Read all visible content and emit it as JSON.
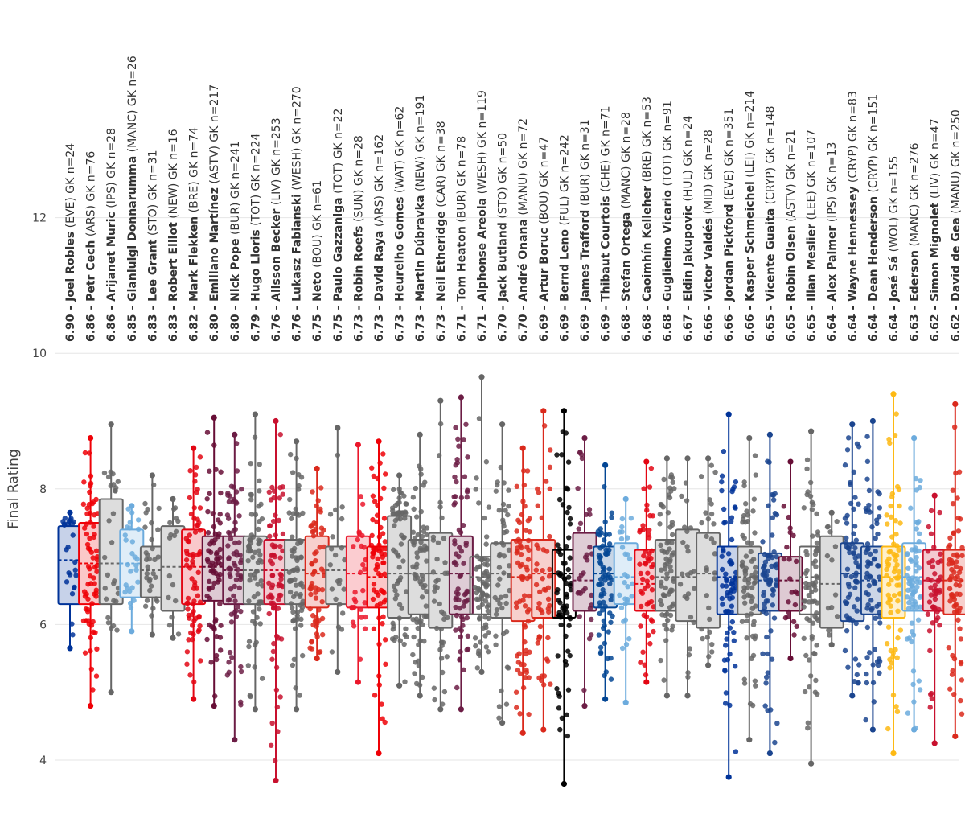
{
  "chart_data": {
    "type": "boxplot",
    "title": "",
    "xlabel": "",
    "ylabel": "Final Rating",
    "ylim": [
      3.7,
      12.8
    ],
    "yticks": [
      4,
      6,
      8,
      10,
      12
    ],
    "ytick_labels": [
      "4",
      "6",
      "8",
      "10",
      "12"
    ],
    "grid": true,
    "legend": "none",
    "series": [
      {
        "rating": "6.90",
        "name": "Joel Robles",
        "team": "(EVE)",
        "suffix": "GK n=24",
        "color": "#003399",
        "fill": "light",
        "min": 5.65,
        "q1": 6.3,
        "median": 6.95,
        "q3": 7.45,
        "max": 7.65,
        "n": 24
      },
      {
        "rating": "6.86",
        "name": "Petr Cech",
        "team": "(ARS)",
        "suffix": "GK n=76",
        "color": "#EF0107",
        "fill": "light",
        "min": 4.8,
        "q1": 6.3,
        "median": 6.9,
        "q3": 7.5,
        "max": 8.75,
        "n": 76
      },
      {
        "rating": "6.86",
        "name": "Arijanet Muric",
        "team": "(IPS)",
        "suffix": "GK n=28",
        "color": "#666666",
        "fill": "light",
        "min": 5.0,
        "q1": 6.3,
        "median": 6.9,
        "q3": 7.85,
        "max": 8.95,
        "n": 28
      },
      {
        "rating": "6.85",
        "name": "Gianluigi Donnarumma",
        "team": "(MANC)",
        "suffix": "GK n=26",
        "color": "#6CABDD",
        "fill": "light",
        "min": 5.9,
        "q1": 6.4,
        "median": 6.9,
        "q3": 7.4,
        "max": 7.75,
        "n": 26
      },
      {
        "rating": "6.83",
        "name": "Lee Grant",
        "team": "(STO)",
        "suffix": "GK n=31",
        "color": "#666666",
        "fill": "light",
        "min": 5.85,
        "q1": 6.4,
        "median": 6.8,
        "q3": 7.15,
        "max": 8.2,
        "n": 31
      },
      {
        "rating": "6.83",
        "name": "Robert Elliot",
        "team": "(NEW)",
        "suffix": "GK n=16",
        "color": "#666666",
        "fill": "light",
        "min": 5.8,
        "q1": 6.2,
        "median": 6.85,
        "q3": 7.45,
        "max": 7.85,
        "n": 16
      },
      {
        "rating": "6.82",
        "name": "Mark Flekken",
        "team": "(BRE)",
        "suffix": "GK n=74",
        "color": "#E30613",
        "fill": "light",
        "min": 4.9,
        "q1": 6.3,
        "median": 6.85,
        "q3": 7.4,
        "max": 8.6,
        "n": 74
      },
      {
        "rating": "6.80",
        "name": "Emiliano Martínez",
        "team": "(ASTV)",
        "suffix": "GK n=217",
        "color": "#670E36",
        "fill": "light",
        "min": 4.8,
        "q1": 6.35,
        "median": 6.85,
        "q3": 7.3,
        "max": 9.05,
        "n": 217
      },
      {
        "rating": "6.80",
        "name": "Nick Pope",
        "team": "(BUR)",
        "suffix": "GK n=241",
        "color": "#6C1D45",
        "fill": "light",
        "min": 4.3,
        "q1": 6.3,
        "median": 6.8,
        "q3": 7.3,
        "max": 8.8,
        "n": 241
      },
      {
        "rating": "6.79",
        "name": "Hugo Lloris",
        "team": "(TOT)",
        "suffix": "GK n=224",
        "color": "#666666",
        "fill": "light",
        "min": 4.75,
        "q1": 6.3,
        "median": 6.8,
        "q3": 7.3,
        "max": 9.1,
        "n": 224
      },
      {
        "rating": "6.76",
        "name": "Alisson Becker",
        "team": "(LIV)",
        "suffix": "GK n=253",
        "color": "#C8102E",
        "fill": "light",
        "min": 3.7,
        "q1": 6.3,
        "median": 6.8,
        "q3": 7.25,
        "max": 9.0,
        "n": 253
      },
      {
        "rating": "6.76",
        "name": "Lukasz Fabianski",
        "team": "(WESH)",
        "suffix": "GK n=270",
        "color": "#666666",
        "fill": "light",
        "min": 4.75,
        "q1": 6.3,
        "median": 6.8,
        "q3": 7.25,
        "max": 8.7,
        "n": 270
      },
      {
        "rating": "6.75",
        "name": "Neto",
        "team": "(BOU)",
        "suffix": "GK n=61",
        "color": "#DA291C",
        "fill": "light",
        "min": 5.5,
        "q1": 6.25,
        "median": 6.75,
        "q3": 7.3,
        "max": 8.3,
        "n": 61
      },
      {
        "rating": "6.75",
        "name": "Paulo Gazzaniga",
        "team": "(TOT)",
        "suffix": "GK n=22",
        "color": "#666666",
        "fill": "light",
        "min": 5.3,
        "q1": 6.3,
        "median": 6.8,
        "q3": 7.15,
        "max": 8.9,
        "n": 22
      },
      {
        "rating": "6.73",
        "name": "Robin Roefs",
        "team": "(SUN)",
        "suffix": "GK n=28",
        "color": "#EB172B",
        "fill": "light",
        "min": 5.15,
        "q1": 6.25,
        "median": 6.75,
        "q3": 7.3,
        "max": 8.65,
        "n": 28
      },
      {
        "rating": "6.73",
        "name": "David Raya",
        "team": "(ARS)",
        "suffix": "GK n=162",
        "color": "#EF0107",
        "fill": "light",
        "min": 4.1,
        "q1": 6.25,
        "median": 6.7,
        "q3": 7.15,
        "max": 8.7,
        "n": 162
      },
      {
        "rating": "6.73",
        "name": "Heurelho Gomes",
        "team": "(WAT)",
        "suffix": "GK n=62",
        "color": "#666666",
        "fill": "light",
        "min": 5.1,
        "q1": 6.1,
        "median": 6.75,
        "q3": 7.6,
        "max": 8.2,
        "n": 62
      },
      {
        "rating": "6.73",
        "name": "Martin Dúbravka",
        "team": "(NEW)",
        "suffix": "GK n=191",
        "color": "#666666",
        "fill": "light",
        "min": 4.95,
        "q1": 6.15,
        "median": 6.75,
        "q3": 7.25,
        "max": 8.8,
        "n": 191
      },
      {
        "rating": "6.73",
        "name": "Neil Etheridge",
        "team": "(CAR)",
        "suffix": "GK n=38",
        "color": "#666666",
        "fill": "light",
        "min": 4.75,
        "q1": 5.95,
        "median": 6.75,
        "q3": 7.35,
        "max": 9.3,
        "n": 38
      },
      {
        "rating": "6.71",
        "name": "Tom Heaton",
        "team": "(BUR)",
        "suffix": "GK n=78",
        "color": "#6C1D45",
        "fill": "light",
        "min": 4.75,
        "q1": 6.15,
        "median": 6.75,
        "q3": 7.3,
        "max": 9.35,
        "n": 78
      },
      {
        "rating": "6.71",
        "name": "Alphonse Areola",
        "team": "(WESH)",
        "suffix": "GK n=119",
        "color": "#666666",
        "fill": "none",
        "min": 5.3,
        "q1": 6.15,
        "median": 6.7,
        "q3": 7.0,
        "max": 9.65,
        "n": 119
      },
      {
        "rating": "6.70",
        "name": "Jack Butland",
        "team": "(STO)",
        "suffix": "GK n=50",
        "color": "#666666",
        "fill": "light",
        "min": 4.55,
        "q1": 6.1,
        "median": 6.75,
        "q3": 7.2,
        "max": 8.95,
        "n": 50
      },
      {
        "rating": "6.70",
        "name": "André Onana",
        "team": "(MANU)",
        "suffix": "GK n=72",
        "color": "#DA291C",
        "fill": "light",
        "min": 4.4,
        "q1": 6.05,
        "median": 6.7,
        "q3": 7.25,
        "max": 8.6,
        "n": 72
      },
      {
        "rating": "6.69",
        "name": "Artur Boruc",
        "team": "(BOU)",
        "suffix": "GK n=47",
        "color": "#DA291C",
        "fill": "light",
        "min": 4.45,
        "q1": 6.1,
        "median": 6.75,
        "q3": 7.25,
        "max": 9.15,
        "n": 47
      },
      {
        "rating": "6.69",
        "name": "Bernd Leno",
        "team": "(FUL)",
        "suffix": "GK n=242",
        "color": "#000000",
        "fill": "none",
        "min": 3.65,
        "q1": 6.1,
        "median": 6.75,
        "q3": 7.1,
        "max": 9.15,
        "n": 242
      },
      {
        "rating": "6.69",
        "name": "James Trafford",
        "team": "(BUR)",
        "suffix": "GK n=31",
        "color": "#6C1D45",
        "fill": "light",
        "min": 4.8,
        "q1": 6.2,
        "median": 6.65,
        "q3": 7.35,
        "max": 8.75,
        "n": 31
      },
      {
        "rating": "6.69",
        "name": "Thibaut Courtois",
        "team": "(CHE)",
        "suffix": "GK n=71",
        "color": "#034694",
        "fill": "light",
        "min": 4.9,
        "q1": 6.25,
        "median": 6.75,
        "q3": 7.15,
        "max": 8.35,
        "n": 71
      },
      {
        "rating": "6.68",
        "name": "Stefan Ortega",
        "team": "(MANC)",
        "suffix": "GK n=28",
        "color": "#6CABDD",
        "fill": "light",
        "min": 4.85,
        "q1": 6.3,
        "median": 6.7,
        "q3": 7.2,
        "max": 7.85,
        "n": 28
      },
      {
        "rating": "6.68",
        "name": "Caoimhín Kelleher",
        "team": "(BRE)",
        "suffix": "GK n=53",
        "color": "#E30613",
        "fill": "light",
        "min": 5.15,
        "q1": 6.2,
        "median": 6.6,
        "q3": 7.1,
        "max": 8.4,
        "n": 53
      },
      {
        "rating": "6.68",
        "name": "Guglielmo Vicario",
        "team": "(TOT)",
        "suffix": "GK n=91",
        "color": "#666666",
        "fill": "light",
        "min": 4.95,
        "q1": 6.2,
        "median": 6.7,
        "q3": 7.25,
        "max": 8.45,
        "n": 91
      },
      {
        "rating": "6.67",
        "name": "Eldin Jakupovic",
        "team": "(HUL)",
        "suffix": "GK n=24",
        "color": "#666666",
        "fill": "light",
        "min": 4.95,
        "q1": 6.05,
        "median": 6.7,
        "q3": 7.4,
        "max": 8.45,
        "n": 24
      },
      {
        "rating": "6.66",
        "name": "Victor Valdés",
        "team": "(MID)",
        "suffix": "GK n=28",
        "color": "#666666",
        "fill": "light",
        "min": 5.4,
        "q1": 5.95,
        "median": 6.75,
        "q3": 7.35,
        "max": 8.45,
        "n": 28
      },
      {
        "rating": "6.66",
        "name": "Jordan Pickford",
        "team": "(EVE)",
        "suffix": "GK n=351",
        "color": "#003399",
        "fill": "light",
        "min": 3.75,
        "q1": 6.15,
        "median": 6.7,
        "q3": 7.15,
        "max": 9.1,
        "n": 351
      },
      {
        "rating": "6.66",
        "name": "Kasper Schmeichel",
        "team": "(LEI)",
        "suffix": "GK n=214",
        "color": "#666666",
        "fill": "light",
        "min": 4.3,
        "q1": 6.15,
        "median": 6.7,
        "q3": 7.15,
        "max": 8.75,
        "n": 214
      },
      {
        "rating": "6.65",
        "name": "Vicente Guaita",
        "team": "(CRYP)",
        "suffix": "GK n=148",
        "color": "#1B458F",
        "fill": "light",
        "min": 4.1,
        "q1": 6.2,
        "median": 6.65,
        "q3": 7.05,
        "max": 8.8,
        "n": 148
      },
      {
        "rating": "6.65",
        "name": "Robin Olsen",
        "team": "(ASTV)",
        "suffix": "GK n=21",
        "color": "#670E36",
        "fill": "light",
        "min": 5.5,
        "q1": 6.2,
        "median": 6.65,
        "q3": 7.0,
        "max": 8.4,
        "n": 21
      },
      {
        "rating": "6.65",
        "name": "Illan Meslier",
        "team": "(LEE)",
        "suffix": "GK n=107",
        "color": "#666666",
        "fill": "none",
        "min": 3.95,
        "q1": 6.15,
        "median": 6.7,
        "q3": 7.15,
        "max": 8.85,
        "n": 107
      },
      {
        "rating": "6.64",
        "name": "Alex Palmer",
        "team": "(IPS)",
        "suffix": "GK n=13",
        "color": "#666666",
        "fill": "light",
        "min": 5.7,
        "q1": 5.95,
        "median": 6.6,
        "q3": 7.3,
        "max": 7.65,
        "n": 13
      },
      {
        "rating": "6.64",
        "name": "Wayne Hennessey",
        "team": "(CRYP)",
        "suffix": "GK n=83",
        "color": "#1B458F",
        "fill": "light",
        "min": 4.95,
        "q1": 6.05,
        "median": 6.75,
        "q3": 7.2,
        "max": 8.95,
        "n": 83
      },
      {
        "rating": "6.64",
        "name": "Dean Henderson",
        "team": "(CRYP)",
        "suffix": "GK n=151",
        "color": "#1B458F",
        "fill": "light",
        "min": 4.45,
        "q1": 6.15,
        "median": 6.65,
        "q3": 7.15,
        "max": 9.0,
        "n": 151
      },
      {
        "rating": "6.64",
        "name": "José Sá",
        "team": "(WOL)",
        "suffix": "GK n=155",
        "color": "#FDB913",
        "fill": "light",
        "min": 4.1,
        "q1": 6.1,
        "median": 6.7,
        "q3": 7.15,
        "max": 9.4,
        "n": 155
      },
      {
        "rating": "6.63",
        "name": "Ederson",
        "team": "(MANC)",
        "suffix": "GK n=276",
        "color": "#6CABDD",
        "fill": "none",
        "min": 4.45,
        "q1": 6.2,
        "median": 6.7,
        "q3": 7.2,
        "max": 8.75,
        "n": 276
      },
      {
        "rating": "6.62",
        "name": "Simon Mignolet",
        "team": "(LIV)",
        "suffix": "GK n=47",
        "color": "#C8102E",
        "fill": "light",
        "min": 4.25,
        "q1": 6.2,
        "median": 6.65,
        "q3": 7.1,
        "max": 7.9,
        "n": 47
      },
      {
        "rating": "6.62",
        "name": "David de Gea",
        "team": "(MANU)",
        "suffix": "GK n=250",
        "color": "#DA291C",
        "fill": "light",
        "min": 4.35,
        "q1": 6.15,
        "median": 6.65,
        "q3": 7.1,
        "max": 9.25,
        "n": 250
      }
    ]
  }
}
